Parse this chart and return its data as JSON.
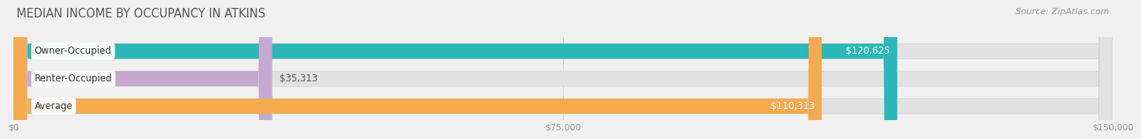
{
  "title": "MEDIAN INCOME BY OCCUPANCY IN ATKINS",
  "source": "Source: ZipAtlas.com",
  "categories": [
    "Owner-Occupied",
    "Renter-Occupied",
    "Average"
  ],
  "values": [
    120625,
    35313,
    110313
  ],
  "bar_colors": [
    "#2ab8b8",
    "#c4a8d0",
    "#f5aa50"
  ],
  "bar_label_colors": [
    "#ffffff",
    "#555555",
    "#ffffff"
  ],
  "value_label_inside": [
    true,
    false,
    true
  ],
  "xlim": [
    0,
    150000
  ],
  "xticks": [
    0,
    75000,
    150000
  ],
  "xtick_labels": [
    "$0",
    "$75,000",
    "$150,000"
  ],
  "background_color": "#f0f0f0",
  "bar_bg_color": "#e2e2e2",
  "title_fontsize": 10.5,
  "label_fontsize": 8.5,
  "value_fontsize": 8.5,
  "source_fontsize": 8
}
